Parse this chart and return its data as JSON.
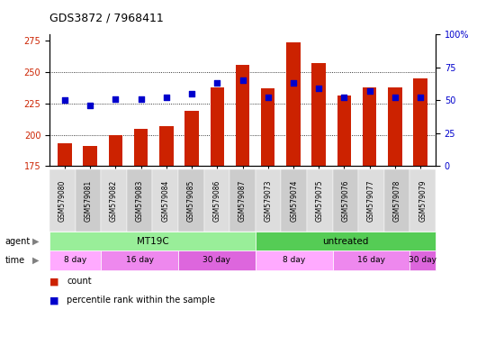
{
  "title": "GDS3872 / 7968411",
  "samples": [
    "GSM579080",
    "GSM579081",
    "GSM579082",
    "GSM579083",
    "GSM579084",
    "GSM579085",
    "GSM579086",
    "GSM579087",
    "GSM579073",
    "GSM579074",
    "GSM579075",
    "GSM579076",
    "GSM579077",
    "GSM579078",
    "GSM579079"
  ],
  "counts": [
    193,
    191,
    200,
    205,
    207,
    219,
    238,
    256,
    237,
    274,
    257,
    231,
    238,
    238,
    245
  ],
  "percentile_ranks": [
    50,
    46,
    51,
    51,
    52,
    55,
    63,
    65,
    52,
    63,
    59,
    52,
    57,
    52,
    52
  ],
  "ylim_left": [
    175,
    280
  ],
  "ylim_right": [
    0,
    100
  ],
  "yticks_left": [
    175,
    200,
    225,
    250,
    275
  ],
  "yticks_right": [
    0,
    25,
    50,
    75,
    100
  ],
  "bar_color": "#cc2200",
  "dot_color": "#0000cc",
  "bar_width": 0.55,
  "agent_groups": [
    {
      "label": "MT19C",
      "start": 0,
      "end": 7,
      "color": "#99ee99"
    },
    {
      "label": "untreated",
      "start": 8,
      "end": 14,
      "color": "#55cc55"
    }
  ],
  "time_groups": [
    {
      "label": "8 day",
      "start": 0,
      "end": 1,
      "color": "#ffaaff"
    },
    {
      "label": "16 day",
      "start": 2,
      "end": 4,
      "color": "#ee88ee"
    },
    {
      "label": "30 day",
      "start": 5,
      "end": 7,
      "color": "#dd66dd"
    },
    {
      "label": "8 day",
      "start": 8,
      "end": 10,
      "color": "#ffaaff"
    },
    {
      "label": "16 day",
      "start": 11,
      "end": 13,
      "color": "#ee88ee"
    },
    {
      "label": "30 day",
      "start": 14,
      "end": 14,
      "color": "#dd66dd"
    }
  ],
  "legend_count_label": "count",
  "legend_pct_label": "percentile rank within the sample",
  "agent_label": "agent",
  "time_label": "time",
  "background_color": "#ffffff",
  "plot_bg_color": "#ffffff",
  "axis_label_color_left": "#cc2200",
  "axis_label_color_right": "#0000cc"
}
